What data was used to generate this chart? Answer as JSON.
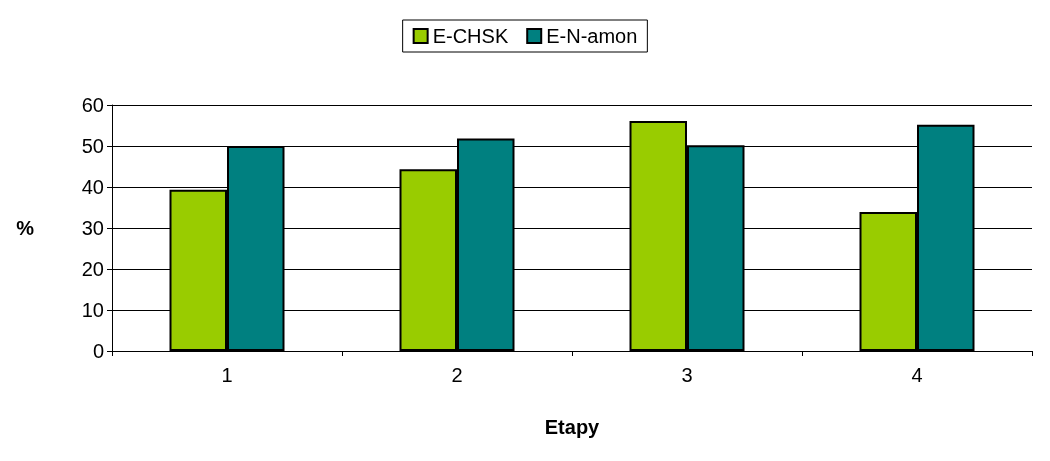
{
  "chart_data": {
    "type": "bar",
    "xlabel": "Etapy",
    "ylabel": "%",
    "categories": [
      "1",
      "2",
      "3",
      "4"
    ],
    "series": [
      {
        "name": "E-CHSK",
        "color": "#99cc00",
        "values": [
          39.3,
          44.3,
          56.1,
          33.9
        ]
      },
      {
        "name": "E-N-amon",
        "color": "#008080",
        "values": [
          50,
          51.8,
          50.2,
          55.2
        ]
      }
    ],
    "ylim": [
      0,
      60
    ],
    "yticks": [
      0,
      10,
      20,
      30,
      40,
      50,
      60
    ],
    "grid": "y",
    "legend": "top"
  }
}
